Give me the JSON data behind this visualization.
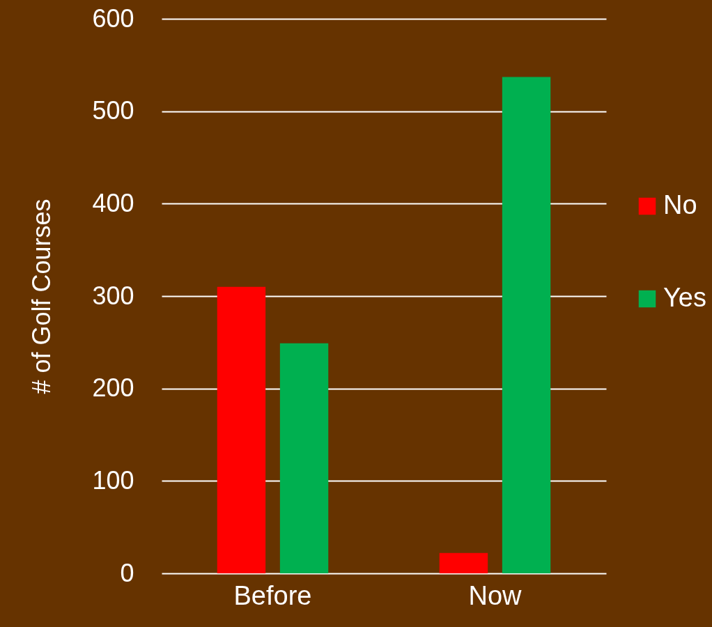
{
  "chart_data": {
    "type": "bar",
    "ylabel": "# of Golf Courses",
    "categories": [
      "Before",
      "Now"
    ],
    "series": [
      {
        "name": "No",
        "color": "#ff0000",
        "values": [
          310,
          22
        ]
      },
      {
        "name": "Yes",
        "color": "#00b050",
        "values": [
          249,
          537
        ]
      }
    ],
    "ylim": [
      0,
      600
    ],
    "yticks": [
      0,
      100,
      200,
      300,
      400,
      500,
      600
    ],
    "grid": "y",
    "legend": "right"
  }
}
